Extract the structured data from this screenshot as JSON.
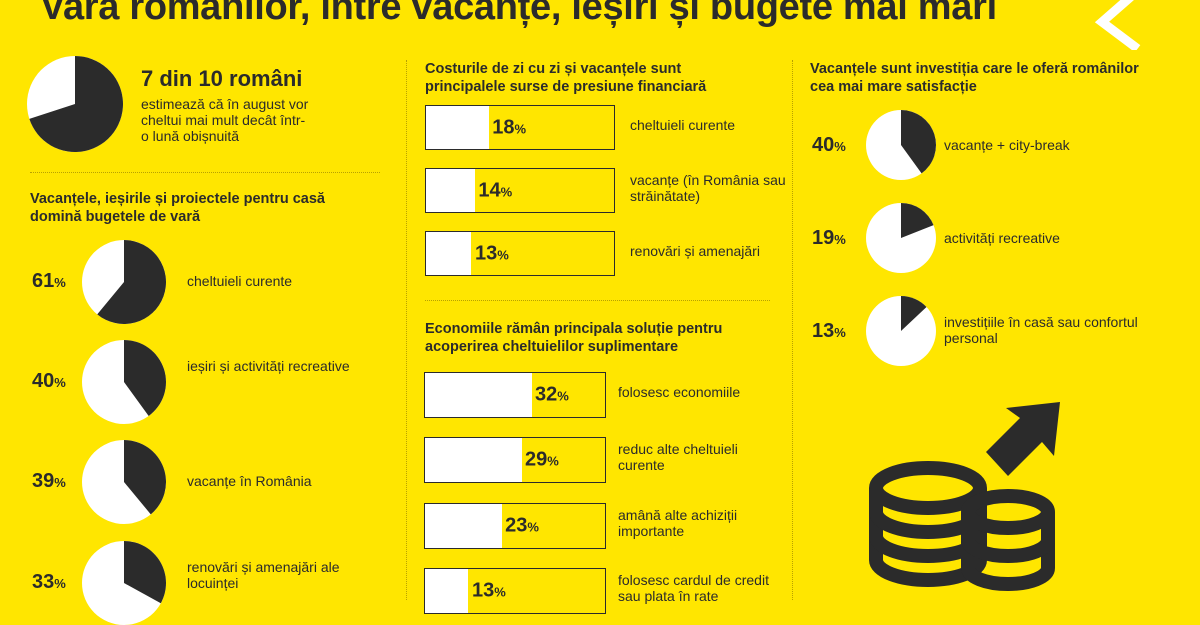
{
  "title": "Vara românilor, între vacanțe, ieșiri și bugete mai mari",
  "colors": {
    "background": "#FFE600",
    "dark": "#2b2b2b",
    "white": "#ffffff"
  },
  "headline_stat": {
    "value": 70,
    "big": "7 din 10 români",
    "text": "estimează că în august vor cheltui mai mult decât într-o lună obișnuită"
  },
  "sections": {
    "summer_budgets": {
      "heading": "Vacanțele, ieșirile și proiectele pentru casă domină bugetele de vară"
    },
    "pressure": {
      "heading": "Costurile de zi cu zi și vacanțele sunt principalele surse de presiune financiară"
    },
    "savings": {
      "heading": "Economiile rămân principala soluție pentru acoperirea cheltuielilor suplimentare"
    },
    "satisfaction": {
      "heading": "Vacanțele sunt investiția care le oferă românilor cea mai mare satisfacție"
    }
  },
  "icons": [
    "chevron-left-icon",
    "coins-icon",
    "arrow-up-right-icon"
  ],
  "chart_data": [
    {
      "type": "pie",
      "title": "7 din 10 români",
      "values": [
        70
      ]
    },
    {
      "type": "pie",
      "title": "Vacanțele, ieșirile și proiectele pentru casă domină bugetele de vară",
      "categories": [
        "cheltuieli curente",
        "ieșiri și activități recreative",
        "vacanțe în România",
        "renovări și amenajări ale locuinței"
      ],
      "values": [
        61,
        40,
        39,
        33
      ],
      "unit": "%"
    },
    {
      "type": "bar",
      "title": "Costurile de zi cu zi și vacanțele sunt principalele surse de presiune financiară",
      "categories": [
        "cheltuieli curente",
        "vacanțe (în România sau străinătate)",
        "renovări și amenajări"
      ],
      "values": [
        18,
        14,
        13
      ],
      "unit": "%"
    },
    {
      "type": "bar",
      "title": "Economiile rămân principala soluție pentru acoperirea cheltuielilor suplimentare",
      "categories": [
        "folosesc economiile",
        "reduc alte cheltuieli curente",
        "amână alte achiziții importante",
        "folosesc cardul de credit sau plata în rate"
      ],
      "values": [
        32,
        29,
        23,
        13
      ],
      "unit": "%"
    },
    {
      "type": "pie",
      "title": "Vacanțele sunt investiția care le oferă românilor cea mai mare satisfacție",
      "categories": [
        "vacanțe + city-break",
        "activități recreative",
        "investițiile în casă sau confortul personal"
      ],
      "values": [
        40,
        19,
        13
      ],
      "unit": "%"
    }
  ]
}
